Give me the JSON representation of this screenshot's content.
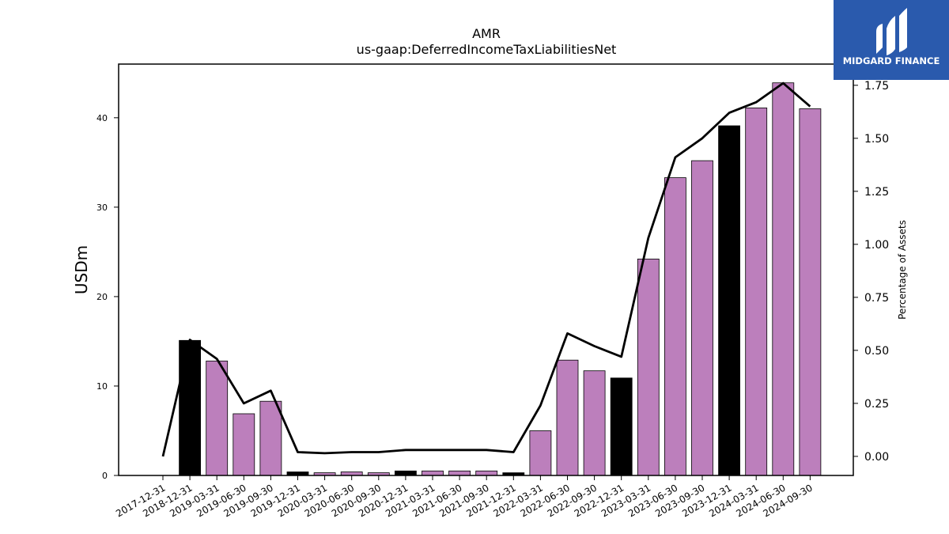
{
  "chart_data": {
    "type": "bar",
    "title": "AMR",
    "subtitle": "us-gaap:DeferredIncomeTaxLiabilitiesNet",
    "ylabel": "USDm",
    "ylabel_right": "Percentage of Assets",
    "ylim": [
      0,
      46
    ],
    "ylim_right": [
      -0.09,
      1.85
    ],
    "yticks": [
      0,
      10,
      20,
      30,
      40
    ],
    "yticks_right": [
      "0.00",
      "0.25",
      "0.50",
      "0.75",
      "1.00",
      "1.25",
      "1.50",
      "1.75"
    ],
    "categories": [
      "2017-12-31",
      "2018-12-31",
      "2019-03-31",
      "2019-06-30",
      "2019-09-30",
      "2019-12-31",
      "2020-03-31",
      "2020-06-30",
      "2020-09-30",
      "2020-12-31",
      "2021-03-31",
      "2021-06-30",
      "2021-09-30",
      "2021-12-31",
      "2022-03-31",
      "2022-06-30",
      "2022-09-30",
      "2022-12-31",
      "2023-03-31",
      "2023-06-30",
      "2023-09-30",
      "2023-12-31",
      "2024-03-31",
      "2024-06-30",
      "2024-09-30"
    ],
    "values": [
      0,
      15.1,
      12.8,
      6.9,
      8.3,
      0.4,
      0.3,
      0.4,
      0.3,
      0.5,
      0.5,
      0.5,
      0.5,
      0.3,
      5.0,
      12.9,
      11.7,
      10.9,
      24.2,
      33.3,
      35.2,
      39.1,
      41.1,
      43.9,
      41.0
    ],
    "bar_kind": [
      "none",
      "annual",
      "quarter",
      "quarter",
      "quarter",
      "annual",
      "quarter",
      "quarter",
      "quarter",
      "annual",
      "quarter",
      "quarter",
      "quarter",
      "annual",
      "quarter",
      "quarter",
      "quarter",
      "annual",
      "quarter",
      "quarter",
      "quarter",
      "annual",
      "quarter",
      "quarter",
      "quarter"
    ],
    "series": [
      {
        "values": [
          0.0,
          0.55,
          0.46,
          0.25,
          0.31,
          0.02,
          0.015,
          0.02,
          0.02,
          0.03,
          0.03,
          0.03,
          0.03,
          0.02,
          0.24,
          0.58,
          0.52,
          0.47,
          1.03,
          1.41,
          1.5,
          1.62,
          1.67,
          1.76,
          1.65
        ]
      }
    ],
    "colors": {
      "annual": "#000000",
      "quarter": "#bc7fbc",
      "line": "#000000"
    },
    "grid": false
  },
  "logo": {
    "text": "MIDGARD FINANCE",
    "background": "#2a5aad"
  }
}
